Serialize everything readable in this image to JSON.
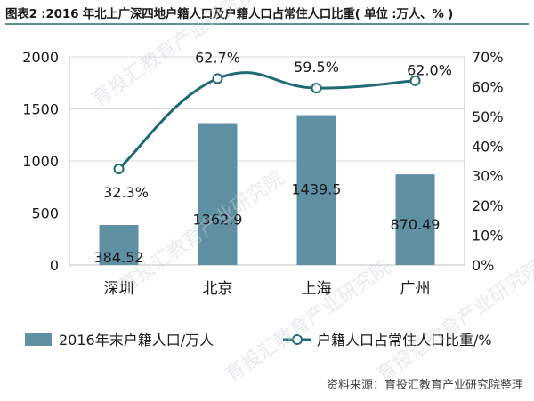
{
  "title": "图表2 :2016 年北上广深四地户籍人口及户籍人口占常住人口比重( 单位 :万人、% )",
  "source": "资料来源：育投汇教育产业研究院整理",
  "watermark": "育投汇教育产业研究院",
  "colors": {
    "bar": "#5f8fa3",
    "line": "#1f6b73",
    "marker_fill": "#ffffff",
    "grid": "#d9d9d9",
    "text": "#1a1a1a",
    "title_rule": "#5f8fa3",
    "watermark": "#c8d3d8"
  },
  "chart_data": {
    "type": "bar",
    "categories": [
      "深圳",
      "北京",
      "上海",
      "广州"
    ],
    "series": [
      {
        "name": "2016年末户籍人口/万人",
        "type": "bar",
        "axis": "left",
        "values": [
          384.52,
          1362.9,
          1439.5,
          870.49
        ],
        "labels": [
          "384.52",
          "1362.9",
          "1439.5",
          "870.49"
        ]
      },
      {
        "name": "户籍人口占常住人口比重/%",
        "type": "line",
        "axis": "right",
        "values": [
          32.3,
          62.7,
          59.5,
          62.0
        ],
        "labels": [
          "32.3%",
          "62.7%",
          "59.5%",
          "62.0%"
        ]
      }
    ],
    "y_left": {
      "min": 0,
      "max": 2000,
      "ticks": [
        0,
        500,
        1000,
        1500,
        2000
      ],
      "tick_labels": [
        "0",
        "500",
        "1000",
        "1500",
        "2000"
      ]
    },
    "y_right": {
      "min": 0,
      "max": 70,
      "ticks": [
        0,
        10,
        20,
        30,
        40,
        50,
        60,
        70
      ],
      "tick_labels": [
        "0%",
        "10%",
        "20%",
        "30%",
        "40%",
        "50%",
        "60%",
        "70%"
      ]
    },
    "grid": true,
    "legend_position": "bottom"
  }
}
